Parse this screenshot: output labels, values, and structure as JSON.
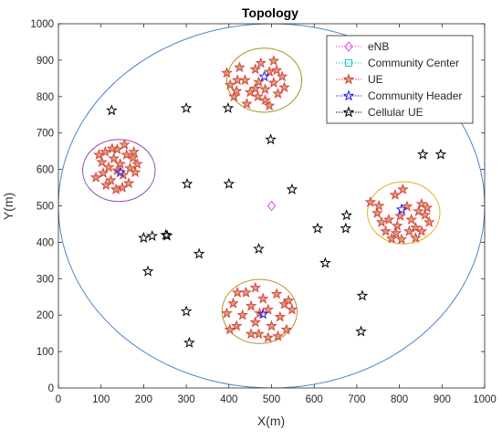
{
  "chart_data": {
    "type": "scatter",
    "title": "Topology",
    "xlabel": "X(m)",
    "ylabel": "Y(m)",
    "xlim": [
      0,
      1000
    ],
    "ylim": [
      0,
      1000
    ],
    "xticks": [
      0,
      100,
      200,
      300,
      400,
      500,
      600,
      700,
      800,
      900,
      1000
    ],
    "yticks": [
      0,
      100,
      200,
      300,
      400,
      500,
      600,
      700,
      800,
      900,
      1000
    ],
    "grid": false,
    "legend_position": "top-right",
    "coverage_circle": {
      "cx": 500,
      "cy": 500,
      "r": 500,
      "color": "#4a86c8"
    },
    "communities": [
      {
        "cx": 142,
        "cy": 597,
        "r": 85,
        "color": "#8e4aa8"
      },
      {
        "cx": 483,
        "cy": 845,
        "r": 88,
        "color": "#a09a1a"
      },
      {
        "cx": 810,
        "cy": 481,
        "r": 85,
        "color": "#e0b020"
      },
      {
        "cx": 472,
        "cy": 210,
        "r": 88,
        "color": "#c09030"
      }
    ],
    "series": [
      {
        "name": "eNB",
        "marker": "diamond",
        "color": "#e040e0",
        "points": [
          [
            500,
            500
          ]
        ]
      },
      {
        "name": "Community Center",
        "marker": "square",
        "color": "#20c8c8",
        "points": []
      },
      {
        "name": "UE",
        "marker": "star",
        "color": "#e04040",
        "points": [
          [
            95,
            640
          ],
          [
            102,
            620
          ],
          [
            110,
            648
          ],
          [
            118,
            606
          ],
          [
            123,
            570
          ],
          [
            130,
            630
          ],
          [
            138,
            655
          ],
          [
            145,
            615
          ],
          [
            152,
            585
          ],
          [
            160,
            640
          ],
          [
            168,
            603
          ],
          [
            175,
            632
          ],
          [
            165,
            562
          ],
          [
            150,
            550
          ],
          [
            135,
            545
          ],
          [
            112,
            557
          ],
          [
            105,
            590
          ],
          [
            180,
            592
          ],
          [
            185,
            615
          ],
          [
            138,
            597
          ],
          [
            126,
            657
          ],
          [
            177,
            648
          ],
          [
            155,
            668
          ],
          [
            88,
            578
          ],
          [
            395,
            865
          ],
          [
            403,
            832
          ],
          [
            412,
            800
          ],
          [
            425,
            880
          ],
          [
            438,
            845
          ],
          [
            450,
            812
          ],
          [
            462,
            875
          ],
          [
            470,
            840
          ],
          [
            485,
            820
          ],
          [
            495,
            868
          ],
          [
            505,
            838
          ],
          [
            515,
            808
          ],
          [
            525,
            855
          ],
          [
            530,
            825
          ],
          [
            485,
            790
          ],
          [
            468,
            800
          ],
          [
            442,
            780
          ],
          [
            420,
            845
          ],
          [
            505,
            898
          ],
          [
            475,
            892
          ],
          [
            418,
            815
          ],
          [
            512,
            872
          ],
          [
            462,
            822
          ],
          [
            495,
            775
          ],
          [
            732,
            510
          ],
          [
            748,
            480
          ],
          [
            758,
            455
          ],
          [
            768,
            430
          ],
          [
            782,
            410
          ],
          [
            795,
            445
          ],
          [
            802,
            472
          ],
          [
            818,
            498
          ],
          [
            828,
            462
          ],
          [
            838,
            440
          ],
          [
            852,
            505
          ],
          [
            860,
            475
          ],
          [
            870,
            455
          ],
          [
            852,
            430
          ],
          [
            838,
            412
          ],
          [
            805,
            408
          ],
          [
            790,
            530
          ],
          [
            775,
            462
          ],
          [
            808,
            545
          ],
          [
            865,
            495
          ],
          [
            752,
            500
          ],
          [
            823,
            430
          ],
          [
            845,
            485
          ],
          [
            792,
            425
          ],
          [
            395,
            205
          ],
          [
            410,
            232
          ],
          [
            418,
            170
          ],
          [
            432,
            200
          ],
          [
            440,
            262
          ],
          [
            452,
            225
          ],
          [
            462,
            180
          ],
          [
            470,
            148
          ],
          [
            480,
            245
          ],
          [
            492,
            215
          ],
          [
            500,
            170
          ],
          [
            512,
            258
          ],
          [
            520,
            195
          ],
          [
            530,
            230
          ],
          [
            535,
            160
          ],
          [
            548,
            215
          ],
          [
            452,
            148
          ],
          [
            420,
            262
          ],
          [
            462,
            275
          ],
          [
            492,
            138
          ],
          [
            515,
            142
          ],
          [
            402,
            160
          ],
          [
            540,
            240
          ],
          [
            472,
            205
          ]
        ]
      },
      {
        "name": "Community Header",
        "marker": "star",
        "color": "#2020e0",
        "points": [
          [
            145,
            592
          ],
          [
            483,
            855
          ],
          [
            805,
            490
          ],
          [
            480,
            203
          ]
        ]
      },
      {
        "name": "Cellular UE",
        "marker": "star",
        "color": "#000000",
        "points": [
          [
            125,
            762
          ],
          [
            300,
            768
          ],
          [
            398,
            768
          ],
          [
            498,
            682
          ],
          [
            548,
            545
          ],
          [
            400,
            560
          ],
          [
            302,
            560
          ],
          [
            200,
            412
          ],
          [
            220,
            417
          ],
          [
            252,
            420
          ],
          [
            255,
            418
          ],
          [
            210,
            320
          ],
          [
            330,
            368
          ],
          [
            470,
            382
          ],
          [
            608,
            438
          ],
          [
            676,
            474
          ],
          [
            674,
            438
          ],
          [
            626,
            343
          ],
          [
            713,
            253
          ],
          [
            710,
            155
          ],
          [
            300,
            210
          ],
          [
            307,
            124
          ],
          [
            855,
            641
          ],
          [
            897,
            641
          ]
        ]
      }
    ]
  }
}
